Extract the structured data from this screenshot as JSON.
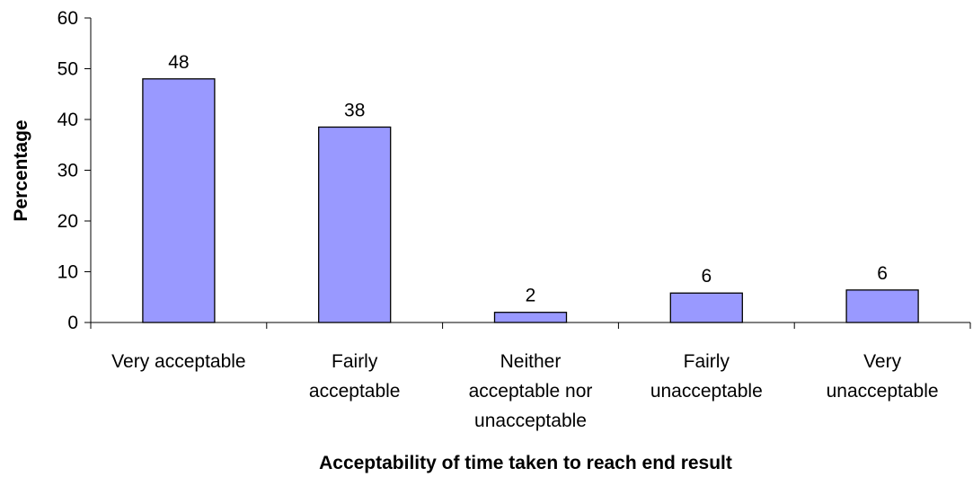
{
  "chart_data": {
    "type": "bar",
    "title": "",
    "xlabel": "Acceptability of time taken to reach end result",
    "ylabel": "Percentage",
    "categories": [
      [
        "Very acceptable"
      ],
      [
        "Fairly",
        "acceptable"
      ],
      [
        "Neither",
        "acceptable nor",
        "unacceptable"
      ],
      [
        "Fairly",
        "unacceptable"
      ],
      [
        "Very",
        "unacceptable"
      ]
    ],
    "values": [
      48,
      38.5,
      2,
      5.8,
      6.4
    ],
    "data_labels": [
      "48",
      "38",
      "2",
      "6",
      "6"
    ],
    "ylim": [
      0,
      60
    ],
    "yticks": [
      0,
      10,
      20,
      30,
      40,
      50,
      60
    ],
    "grid": false,
    "legend": "none",
    "bar_color": "#9999ff",
    "bar_stroke": "#000000"
  }
}
